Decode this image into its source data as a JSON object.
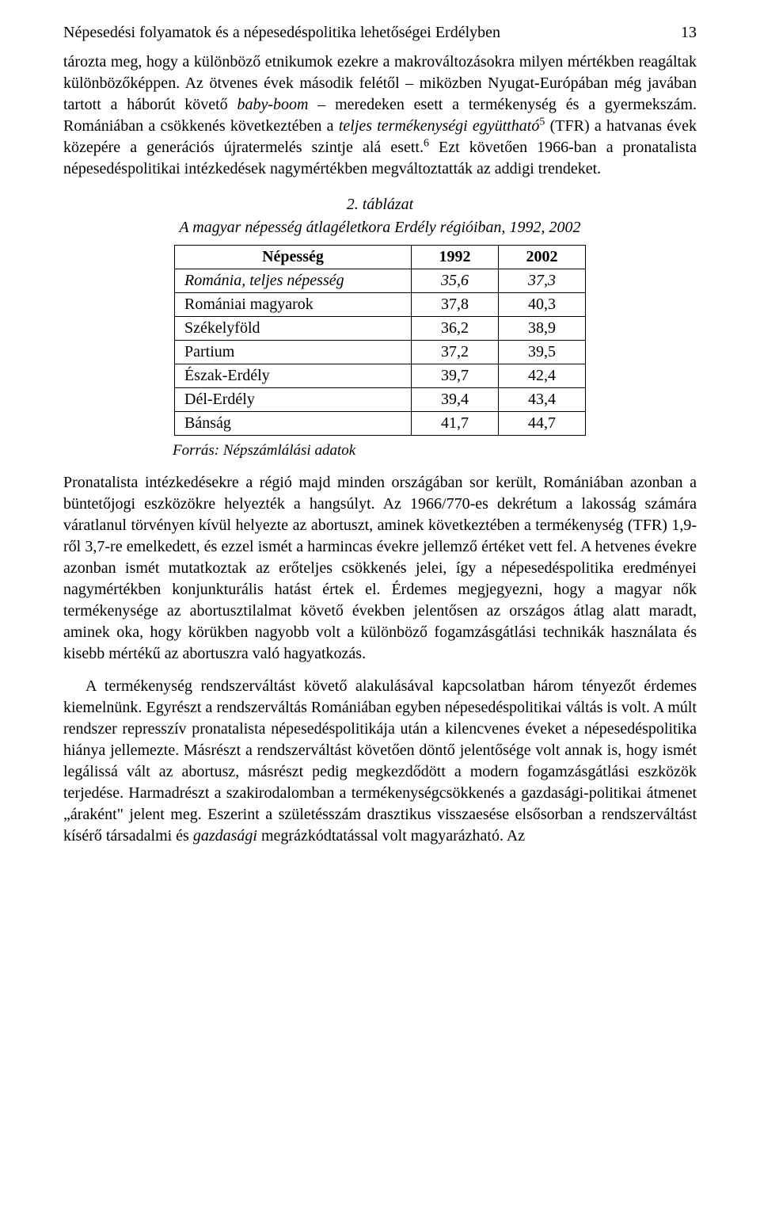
{
  "header": {
    "running_head": "Népesedési folyamatok és a népesedéspolitika lehetőségei Erdélyben",
    "page_number": "13"
  },
  "paragraphs": {
    "p1_part1": "tározta meg, hogy a különböző etnikumok ezekre a makrováltozásokra milyen mértékben reagáltak különbözőképpen. Az ötvenes évek második felétől – miközben Nyugat-Európában még javában tartott a háborút követő ",
    "p1_italic1": "baby-boom",
    "p1_part2": " – meredeken esett a termékenység és a gyermekszám. Romániában a csökkenés következtében a ",
    "p1_italic2": "teljes termékenységi együttható",
    "p1_sup1": "5",
    "p1_part3": " (TFR) a hatvanas évek közepére a generációs újratermelés szintje alá esett.",
    "p1_sup2": "6",
    "p1_part4": " Ezt követően 1966-ban a pronatalista népesedéspolitikai intézkedések nagymértékben megváltoztatták az addigi trendeket.",
    "p2": "Pronatalista intézkedésekre a régió majd minden országában sor került, Romániában azonban a büntetőjogi eszközökre helyezték a hangsúlyt. Az 1966/770-es dekrétum a lakosság számára váratlanul törvényen kívül helyezte az abortuszt, aminek következtében a termékenység (TFR) 1,9-ről 3,7-re emelkedett, és ezzel ismét a harmincas évekre jellemző értéket vett fel. A hetvenes évekre azonban ismét mutatkoztak az erőteljes csökkenés jelei, így a népesedéspolitika eredményei nagymértékben konjunkturális hatást értek el. Érdemes megjegyezni, hogy a magyar nők termékenysége az abortusztilalmat követő években jelentősen az országos átlag alatt maradt, aminek oka, hogy körükben nagyobb volt a különböző fogamzásgátlási technikák használata és kisebb mértékű az abortuszra való hagyatkozás.",
    "p3_part1": "A termékenység rendszerváltást követő alakulásával kapcsolatban három tényezőt érdemes kiemelnünk. Egyrészt a rendszerváltás Romániában egyben népesedéspolitikai váltás is volt. A múlt rendszer represszív pronatalista népesedéspolitikája után a kilencvenes éveket a népesedéspolitika hiánya jellemezte. Másrészt a rendszerváltást követően döntő jelentősége volt annak is, hogy ismét legálissá vált az abortusz, másrészt pedig megkezdődött a modern fogamzásgátlási eszközök terjedése. Harmadrészt a szakirodalomban a termékenységcsökkenés a gazdasági-politikai átmenet „áraként\" jelent meg. Eszerint a születésszám drasztikus visszaesése elsősorban a rendszerváltást kísérő társadalmi és ",
    "p3_italic1": "gazdasági",
    "p3_part2": " megrázkódtatással volt magyarázható. Az"
  },
  "table": {
    "caption_num": "2. táblázat",
    "caption_title": "A magyar népesség átlagéletkora Erdély régióiban, 1992, 2002",
    "columns": [
      "Népesség",
      "1992",
      "2002"
    ],
    "rows": [
      {
        "label": "Románia, teljes népesség",
        "v1": "35,6",
        "v2": "37,3",
        "italic": true
      },
      {
        "label": "Romániai magyarok",
        "v1": "37,8",
        "v2": "40,3",
        "italic": false
      },
      {
        "label": "Székelyföld",
        "v1": "36,2",
        "v2": "38,9",
        "italic": false
      },
      {
        "label": "Partium",
        "v1": "37,2",
        "v2": "39,5",
        "italic": false
      },
      {
        "label": "Észak-Erdély",
        "v1": "39,7",
        "v2": "42,4",
        "italic": false
      },
      {
        "label": "Dél-Erdély",
        "v1": "39,4",
        "v2": "43,4",
        "italic": false
      },
      {
        "label": "Bánság",
        "v1": "41,7",
        "v2": "44,7",
        "italic": false
      }
    ],
    "source": "Forrás: Népszámlálási adatok"
  }
}
